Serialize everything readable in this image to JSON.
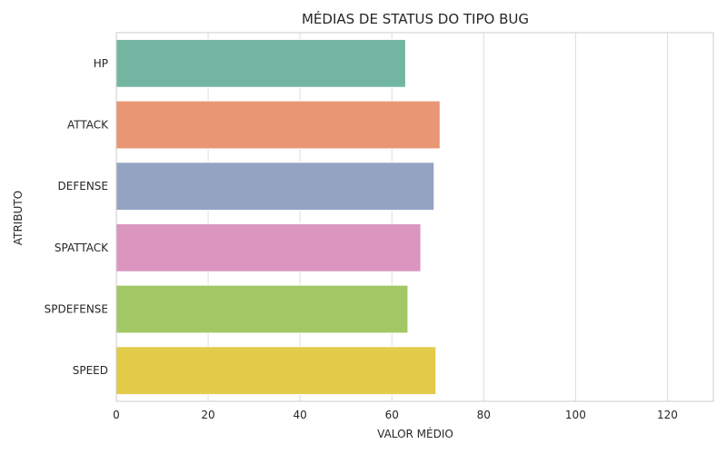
{
  "chart_data": {
    "type": "bar",
    "orientation": "horizontal",
    "title": "MÉDIAS DE STATUS DO TIPO BUG",
    "xlabel": "VALOR MÉDIO",
    "ylabel": "ATRIBUTO",
    "categories": [
      "HP",
      "ATTACK",
      "DEFENSE",
      "SPATTACK",
      "SPDEFENSE",
      "SPEED"
    ],
    "values": [
      63,
      70.5,
      69.2,
      66.3,
      63.5,
      69.6
    ],
    "colors": [
      "#72b6a1",
      "#e99675",
      "#95a3c3",
      "#db96c0",
      "#a2c865",
      "#e2cc49"
    ],
    "xlim": [
      0,
      130
    ],
    "xticks": [
      0,
      20,
      40,
      60,
      80,
      100,
      120
    ],
    "grid": "vertical"
  }
}
